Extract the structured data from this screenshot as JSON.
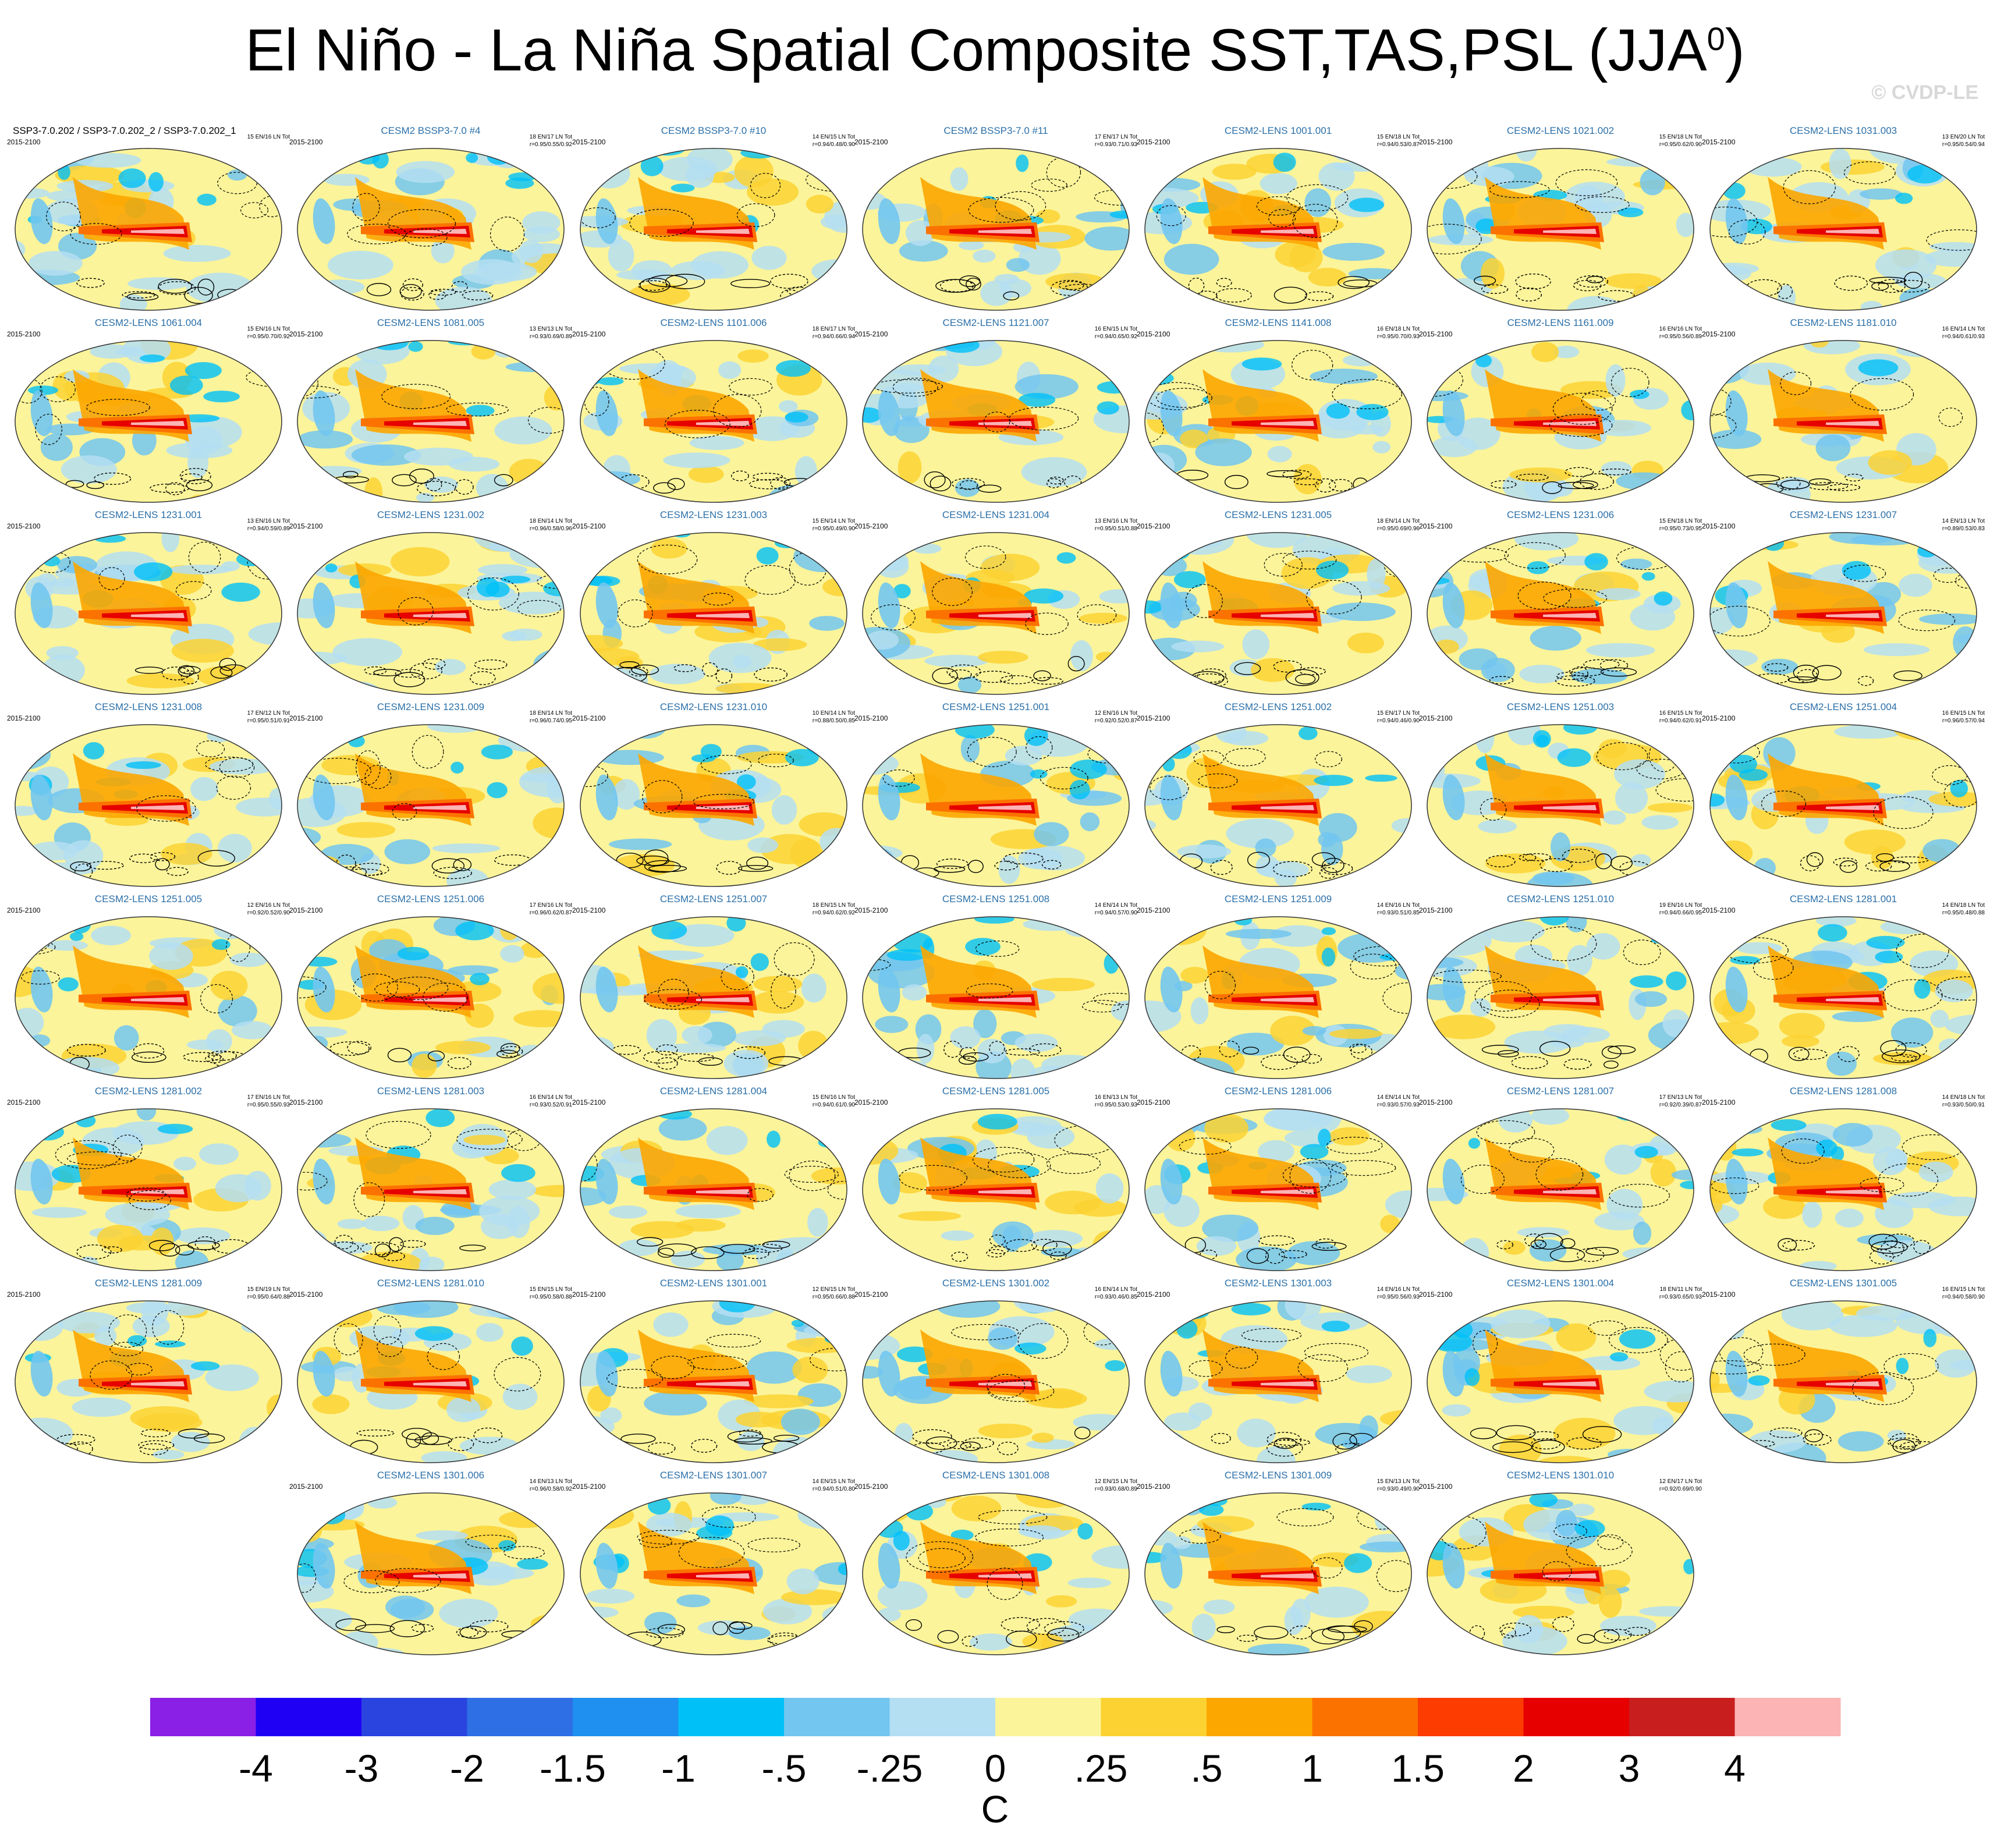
{
  "title": "El Niño - La Niña Spatial Composite SST,TAS,PSL (JJA",
  "title_superscript": "0",
  "title_suffix": ")",
  "copyright": "© CVDP-LE",
  "chart_data": {
    "type": "heatmap",
    "projection": "robinson-global",
    "units": "C",
    "colorbar": {
      "ticks": [
        "-4",
        "-3",
        "-2",
        "-1.5",
        "-1",
        "-.5",
        "-.25",
        "0",
        ".25",
        ".5",
        "1",
        "1.5",
        "2",
        "3",
        "4"
      ],
      "colors": [
        "#8a1fe6",
        "#1f00f5",
        "#2a44e0",
        "#2f6fe6",
        "#1f90f0",
        "#00c0f8",
        "#72c6f0",
        "#b4def2",
        "#fbf49a",
        "#fcd232",
        "#fca600",
        "#fc7200",
        "#fc3c00",
        "#e60000",
        "#c81e1e",
        "#fcb4b4"
      ]
    },
    "panels": [
      {
        "title": "SSP3-7.0.202 / SSP3-7.0.202_2 / SSP3-7.0.202_1",
        "period": "2015-2100",
        "counts": "15 EN/16 LN Tot",
        "r": ""
      },
      {
        "title": "CESM2 BSSP3-7.0 #4",
        "period": "2015-2100",
        "counts": "18 EN/17 LN Tot",
        "r": "r=0.95/0.55/0.92"
      },
      {
        "title": "CESM2 BSSP3-7.0 #10",
        "period": "2015-2100",
        "counts": "14 EN/15 LN Tot",
        "r": "r=0.94/0.48/0.90"
      },
      {
        "title": "CESM2 BSSP3-7.0 #11",
        "period": "2015-2100",
        "counts": "17 EN/17 LN Tot",
        "r": "r=0.93/0.71/0.93"
      },
      {
        "title": "CESM2-LENS 1001.001",
        "period": "2015-2100",
        "counts": "15 EN/18 LN Tot",
        "r": "r=0.94/0.53/0.87"
      },
      {
        "title": "CESM2-LENS 1021.002",
        "period": "2015-2100",
        "counts": "15 EN/18 LN Tot",
        "r": "r=0.95/0.62/0.90"
      },
      {
        "title": "CESM2-LENS 1031.003",
        "period": "2015-2100",
        "counts": "13 EN/20 LN Tot",
        "r": "r=0.95/0.54/0.94"
      },
      {
        "title": "CESM2-LENS 1061.004",
        "period": "2015-2100",
        "counts": "15 EN/16 LN Tot",
        "r": "r=0.95/0.70/0.92"
      },
      {
        "title": "CESM2-LENS 1081.005",
        "period": "2015-2100",
        "counts": "13 EN/13 LN Tot",
        "r": "r=0.93/0.69/0.89"
      },
      {
        "title": "CESM2-LENS 1101.006",
        "period": "2015-2100",
        "counts": "18 EN/17 LN Tot",
        "r": "r=0.94/0.66/0.94"
      },
      {
        "title": "CESM2-LENS 1121.007",
        "period": "2015-2100",
        "counts": "16 EN/15 LN Tot",
        "r": "r=0.94/0.65/0.92"
      },
      {
        "title": "CESM2-LENS 1141.008",
        "period": "2015-2100",
        "counts": "16 EN/18 LN Tot",
        "r": "r=0.95/0.70/0.93"
      },
      {
        "title": "CESM2-LENS 1161.009",
        "period": "2015-2100",
        "counts": "16 EN/16 LN Tot",
        "r": "r=0.95/0.56/0.89"
      },
      {
        "title": "CESM2-LENS 1181.010",
        "period": "2015-2100",
        "counts": "16 EN/14 LN Tot",
        "r": "r=0.94/0.61/0.93"
      },
      {
        "title": "CESM2-LENS 1231.001",
        "period": "2015-2100",
        "counts": "13 EN/16 LN Tot",
        "r": "r=0.94/0.59/0.89"
      },
      {
        "title": "CESM2-LENS 1231.002",
        "period": "2015-2100",
        "counts": "18 EN/14 LN Tot",
        "r": "r=0.96/0.58/0.96"
      },
      {
        "title": "CESM2-LENS 1231.003",
        "period": "2015-2100",
        "counts": "15 EN/14 LN Tot",
        "r": "r=0.95/0.49/0.90"
      },
      {
        "title": "CESM2-LENS 1231.004",
        "period": "2015-2100",
        "counts": "13 EN/16 LN Tot",
        "r": "r=0.95/0.51/0.88"
      },
      {
        "title": "CESM2-LENS 1231.005",
        "period": "2015-2100",
        "counts": "18 EN/14 LN Tot",
        "r": "r=0.95/0.69/0.96"
      },
      {
        "title": "CESM2-LENS 1231.006",
        "period": "2015-2100",
        "counts": "15 EN/18 LN Tot",
        "r": "r=0.95/0.73/0.95"
      },
      {
        "title": "CESM2-LENS 1231.007",
        "period": "2015-2100",
        "counts": "14 EN/13 LN Tot",
        "r": "r=0.89/0.53/0.83"
      },
      {
        "title": "CESM2-LENS 1231.008",
        "period": "2015-2100",
        "counts": "17 EN/12 LN Tot",
        "r": "r=0.95/0.51/0.91"
      },
      {
        "title": "CESM2-LENS 1231.009",
        "period": "2015-2100",
        "counts": "18 EN/14 LN Tot",
        "r": "r=0.96/0.74/0.95"
      },
      {
        "title": "CESM2-LENS 1231.010",
        "period": "2015-2100",
        "counts": "10 EN/14 LN Tot",
        "r": "r=0.88/0.50/0.85"
      },
      {
        "title": "CESM2-LENS 1251.001",
        "period": "2015-2100",
        "counts": "12 EN/16 LN Tot",
        "r": "r=0.92/0.52/0.87"
      },
      {
        "title": "CESM2-LENS 1251.002",
        "period": "2015-2100",
        "counts": "15 EN/17 LN Tot",
        "r": "r=0.94/0.46/0.90"
      },
      {
        "title": "CESM2-LENS 1251.003",
        "period": "2015-2100",
        "counts": "16 EN/15 LN Tot",
        "r": "r=0.94/0.62/0.91"
      },
      {
        "title": "CESM2-LENS 1251.004",
        "period": "2015-2100",
        "counts": "16 EN/15 LN Tot",
        "r": "r=0.96/0.57/0.94"
      },
      {
        "title": "CESM2-LENS 1251.005",
        "period": "2015-2100",
        "counts": "12 EN/16 LN Tot",
        "r": "r=0.92/0.52/0.90"
      },
      {
        "title": "CESM2-LENS 1251.006",
        "period": "2015-2100",
        "counts": "17 EN/16 LN Tot",
        "r": "r=0.96/0.62/0.87"
      },
      {
        "title": "CESM2-LENS 1251.007",
        "period": "2015-2100",
        "counts": "18 EN/15 LN Tot",
        "r": "r=0.94/0.62/0.92"
      },
      {
        "title": "CESM2-LENS 1251.008",
        "period": "2015-2100",
        "counts": "14 EN/14 LN Tot",
        "r": "r=0.94/0.57/0.90"
      },
      {
        "title": "CESM2-LENS 1251.009",
        "period": "2015-2100",
        "counts": "14 EN/16 LN Tot",
        "r": "r=0.93/0.51/0.85"
      },
      {
        "title": "CESM2-LENS 1251.010",
        "period": "2015-2100",
        "counts": "19 EN/16 LN Tot",
        "r": "r=0.94/0.66/0.95"
      },
      {
        "title": "CESM2-LENS 1281.001",
        "period": "2015-2100",
        "counts": "14 EN/18 LN Tot",
        "r": "r=0.95/0.48/0.88"
      },
      {
        "title": "CESM2-LENS 1281.002",
        "period": "2015-2100",
        "counts": "17 EN/16 LN Tot",
        "r": "r=0.95/0.55/0.93"
      },
      {
        "title": "CESM2-LENS 1281.003",
        "period": "2015-2100",
        "counts": "16 EN/14 LN Tot",
        "r": "r=0.93/0.52/0.91"
      },
      {
        "title": "CESM2-LENS 1281.004",
        "period": "2015-2100",
        "counts": "15 EN/16 LN Tot",
        "r": "r=0.94/0.61/0.90"
      },
      {
        "title": "CESM2-LENS 1281.005",
        "period": "2015-2100",
        "counts": "16 EN/13 LN Tot",
        "r": "r=0.95/0.53/0.93"
      },
      {
        "title": "CESM2-LENS 1281.006",
        "period": "2015-2100",
        "counts": "14 EN/14 LN Tot",
        "r": "r=0.93/0.57/0.93"
      },
      {
        "title": "CESM2-LENS 1281.007",
        "period": "2015-2100",
        "counts": "17 EN/13 LN Tot",
        "r": "r=0.92/0.39/0.87"
      },
      {
        "title": "CESM2-LENS 1281.008",
        "period": "2015-2100",
        "counts": "14 EN/18 LN Tot",
        "r": "r=0.93/0.50/0.91"
      },
      {
        "title": "CESM2-LENS 1281.009",
        "period": "2015-2100",
        "counts": "15 EN/19 LN Tot",
        "r": "r=0.95/0.64/0.88"
      },
      {
        "title": "CESM2-LENS 1281.010",
        "period": "2015-2100",
        "counts": "15 EN/15 LN Tot",
        "r": "r=0.95/0.58/0.88"
      },
      {
        "title": "CESM2-LENS 1301.001",
        "period": "2015-2100",
        "counts": "12 EN/15 LN Tot",
        "r": "r=0.95/0.66/0.88"
      },
      {
        "title": "CESM2-LENS 1301.002",
        "period": "2015-2100",
        "counts": "16 EN/14 LN Tot",
        "r": "r=0.93/0.46/0.85"
      },
      {
        "title": "CESM2-LENS 1301.003",
        "period": "2015-2100",
        "counts": "14 EN/16 LN Tot",
        "r": "r=0.95/0.56/0.93"
      },
      {
        "title": "CESM2-LENS 1301.004",
        "period": "2015-2100",
        "counts": "18 EN/11 LN Tot",
        "r": "r=0.93/0.65/0.93"
      },
      {
        "title": "CESM2-LENS 1301.005",
        "period": "2015-2100",
        "counts": "16 EN/15 LN Tot",
        "r": "r=0.94/0.58/0.90"
      },
      {
        "title": "CESM2-LENS 1301.006",
        "period": "2015-2100",
        "counts": "14 EN/13 LN Tot",
        "r": "r=0.96/0.58/0.92"
      },
      {
        "title": "CESM2-LENS 1301.007",
        "period": "2015-2100",
        "counts": "14 EN/15 LN Tot",
        "r": "r=0.94/0.51/0.80"
      },
      {
        "title": "CESM2-LENS 1301.008",
        "period": "2015-2100",
        "counts": "12 EN/15 LN Tot",
        "r": "r=0.93/0.68/0.89"
      },
      {
        "title": "CESM2-LENS 1301.009",
        "period": "2015-2100",
        "counts": "15 EN/13 LN Tot",
        "r": "r=0.93/0.49/0.90"
      },
      {
        "title": "CESM2-LENS 1301.010",
        "period": "2015-2100",
        "counts": "12 EN/17 LN Tot",
        "r": "r=0.92/0.69/0.90"
      }
    ]
  }
}
